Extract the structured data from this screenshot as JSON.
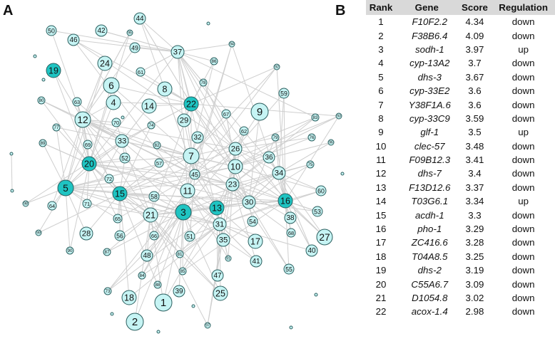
{
  "panel_a_label": "A",
  "panel_b_label": "B",
  "colors": {
    "up": "#1fc4c2",
    "down": "#c6f4f4",
    "edge": "#cfcfcf",
    "stroke": "#2a5e5e",
    "header_bg": "#d9d9d9"
  },
  "network": {
    "nodes": [
      {
        "id": "1",
        "label": "1",
        "reg": "down"
      },
      {
        "id": "2",
        "label": "2",
        "reg": "down"
      },
      {
        "id": "3",
        "label": "3",
        "reg": "up"
      },
      {
        "id": "4",
        "label": "4",
        "reg": "down"
      },
      {
        "id": "5",
        "label": "5",
        "reg": "up"
      },
      {
        "id": "6",
        "label": "6",
        "reg": "down"
      },
      {
        "id": "7",
        "label": "7",
        "reg": "down"
      },
      {
        "id": "8",
        "label": "8",
        "reg": "down"
      },
      {
        "id": "9",
        "label": "9",
        "reg": "down"
      },
      {
        "id": "10",
        "label": "10",
        "reg": "down"
      },
      {
        "id": "11",
        "label": "11",
        "reg": "down"
      },
      {
        "id": "12",
        "label": "12",
        "reg": "down"
      },
      {
        "id": "13",
        "label": "13",
        "reg": "up"
      },
      {
        "id": "14",
        "label": "14",
        "reg": "down"
      },
      {
        "id": "15",
        "label": "15",
        "reg": "up"
      },
      {
        "id": "16",
        "label": "16",
        "reg": "up"
      },
      {
        "id": "17",
        "label": "17",
        "reg": "down"
      },
      {
        "id": "18",
        "label": "18",
        "reg": "down"
      },
      {
        "id": "19",
        "label": "19",
        "reg": "up"
      },
      {
        "id": "20",
        "label": "20",
        "reg": "up"
      },
      {
        "id": "21",
        "label": "21",
        "reg": "down"
      },
      {
        "id": "22",
        "label": "22",
        "reg": "up"
      },
      {
        "id": "23",
        "label": "23",
        "reg": "down"
      },
      {
        "id": "24",
        "label": "24",
        "reg": "down"
      },
      {
        "id": "25",
        "label": "25",
        "reg": "down"
      },
      {
        "id": "26",
        "label": "26",
        "reg": "down"
      },
      {
        "id": "27",
        "label": "27",
        "reg": "down"
      },
      {
        "id": "28",
        "label": "28",
        "reg": "down"
      },
      {
        "id": "29",
        "label": "29",
        "reg": "down"
      },
      {
        "id": "30",
        "label": "30",
        "reg": "down"
      },
      {
        "id": "31",
        "label": "31",
        "reg": "down"
      },
      {
        "id": "32",
        "label": "32",
        "reg": "down"
      },
      {
        "id": "33",
        "label": "33",
        "reg": "down"
      },
      {
        "id": "34",
        "label": "34",
        "reg": "down"
      },
      {
        "id": "35",
        "label": "35",
        "reg": "down"
      },
      {
        "id": "36",
        "label": "36",
        "reg": "down"
      },
      {
        "id": "37",
        "label": "37",
        "reg": "down"
      },
      {
        "id": "38",
        "label": "38",
        "reg": "down"
      },
      {
        "id": "39",
        "label": "39",
        "reg": "down"
      },
      {
        "id": "40",
        "label": "40",
        "reg": "down"
      },
      {
        "id": "41",
        "label": "41",
        "reg": "down"
      },
      {
        "id": "42",
        "label": "42",
        "reg": "down"
      },
      {
        "id": "44",
        "label": "44",
        "reg": "down"
      },
      {
        "id": "45",
        "label": "45",
        "reg": "down"
      },
      {
        "id": "46",
        "label": "46",
        "reg": "down"
      },
      {
        "id": "47",
        "label": "47",
        "reg": "down"
      },
      {
        "id": "48",
        "label": "48",
        "reg": "down"
      },
      {
        "id": "49",
        "label": "49",
        "reg": "down"
      },
      {
        "id": "50",
        "label": "50",
        "reg": "down"
      },
      {
        "id": "51",
        "label": "51",
        "reg": "down"
      },
      {
        "id": "52",
        "label": "52",
        "reg": "down"
      },
      {
        "id": "53",
        "label": "53",
        "reg": "down"
      },
      {
        "id": "54",
        "label": "54",
        "reg": "down"
      },
      {
        "id": "55",
        "label": "55",
        "reg": "down"
      },
      {
        "id": "56",
        "label": "56",
        "reg": "down"
      },
      {
        "id": "57",
        "label": "57",
        "reg": "down"
      },
      {
        "id": "58",
        "label": "58",
        "reg": "down"
      },
      {
        "id": "59",
        "label": "59",
        "reg": "down"
      },
      {
        "id": "60",
        "label": "60",
        "reg": "down"
      },
      {
        "id": "61",
        "label": "61",
        "reg": "down"
      },
      {
        "id": "62",
        "label": "62",
        "reg": "down"
      },
      {
        "id": "63",
        "label": "63",
        "reg": "down"
      },
      {
        "id": "64",
        "label": "64",
        "reg": "down"
      },
      {
        "id": "65",
        "label": "65",
        "reg": "down"
      },
      {
        "id": "66",
        "label": "66",
        "reg": "down"
      },
      {
        "id": "67",
        "label": "67",
        "reg": "down"
      },
      {
        "id": "68",
        "label": "68",
        "reg": "down"
      },
      {
        "id": "69",
        "label": "69",
        "reg": "down"
      },
      {
        "id": "70",
        "label": "70",
        "reg": "down"
      },
      {
        "id": "71",
        "label": "71",
        "reg": "down"
      },
      {
        "id": "72",
        "label": "72",
        "reg": "down"
      },
      {
        "id": "73",
        "label": "73",
        "reg": "down"
      },
      {
        "id": "74",
        "label": "74",
        "reg": "down"
      },
      {
        "id": "75",
        "label": "75",
        "reg": "down"
      },
      {
        "id": "76",
        "label": "76",
        "reg": "down"
      },
      {
        "id": "77",
        "label": "77",
        "reg": "down"
      },
      {
        "id": "78",
        "label": "78",
        "reg": "down"
      },
      {
        "id": "79",
        "label": "79",
        "reg": "down"
      },
      {
        "id": "80",
        "label": "80",
        "reg": "down"
      },
      {
        "id": "81",
        "label": "81",
        "reg": "down"
      },
      {
        "id": "82",
        "label": "82",
        "reg": "down"
      },
      {
        "id": "83",
        "label": "83",
        "reg": "down"
      },
      {
        "id": "84",
        "label": "84",
        "reg": "down"
      },
      {
        "id": "85",
        "label": "85",
        "reg": "down"
      },
      {
        "id": "86",
        "label": "86",
        "reg": "down"
      },
      {
        "id": "87",
        "label": "87",
        "reg": "down"
      },
      {
        "id": "88",
        "label": "88",
        "reg": "down"
      },
      {
        "id": "89",
        "label": "89",
        "reg": "down"
      },
      {
        "id": "90",
        "label": "90",
        "reg": "down"
      },
      {
        "id": "91",
        "label": "91",
        "reg": "down"
      },
      {
        "id": "92",
        "label": "92",
        "reg": "down"
      },
      {
        "id": "93",
        "label": "93",
        "reg": "down"
      },
      {
        "id": "94",
        "label": "94",
        "reg": "down"
      },
      {
        "id": "95",
        "label": "95",
        "reg": "down"
      },
      {
        "id": "96",
        "label": "96",
        "reg": "down"
      },
      {
        "id": "97",
        "label": "97",
        "reg": "down"
      },
      {
        "id": "98",
        "label": "98",
        "reg": "down"
      },
      {
        "id": "99",
        "label": "99",
        "reg": "down"
      }
    ]
  },
  "table": {
    "headers": {
      "rank": "Rank",
      "gene": "Gene",
      "score": "Score",
      "regulation": "Regulation"
    },
    "rows": [
      {
        "rank": "1",
        "gene": "F10F2.2",
        "score": "4.34",
        "regulation": "down"
      },
      {
        "rank": "2",
        "gene": "F38B6.4",
        "score": "4.09",
        "regulation": "down"
      },
      {
        "rank": "3",
        "gene": "sodh-1",
        "score": "3.97",
        "regulation": "up"
      },
      {
        "rank": "4",
        "gene": "cyp-13A2",
        "score": "3.7",
        "regulation": "down"
      },
      {
        "rank": "5",
        "gene": "dhs-3",
        "score": "3.67",
        "regulation": "down"
      },
      {
        "rank": "6",
        "gene": "cyp-33E2",
        "score": "3.6",
        "regulation": "down"
      },
      {
        "rank": "7",
        "gene": "Y38F1A.6",
        "score": "3.6",
        "regulation": "down"
      },
      {
        "rank": "8",
        "gene": "cyp-33C9",
        "score": "3.59",
        "regulation": "down"
      },
      {
        "rank": "9",
        "gene": "glf-1",
        "score": "3.5",
        "regulation": "up"
      },
      {
        "rank": "10",
        "gene": "clec-57",
        "score": "3.48",
        "regulation": "down"
      },
      {
        "rank": "11",
        "gene": "F09B12.3",
        "score": "3.41",
        "regulation": "down"
      },
      {
        "rank": "12",
        "gene": "dhs-7",
        "score": "3.4",
        "regulation": "down"
      },
      {
        "rank": "13",
        "gene": "F13D12.6",
        "score": "3.37",
        "regulation": "down"
      },
      {
        "rank": "14",
        "gene": "T03G6.1",
        "score": "3.34",
        "regulation": "up"
      },
      {
        "rank": "15",
        "gene": "acdh-1",
        "score": "3.3",
        "regulation": "down"
      },
      {
        "rank": "16",
        "gene": "pho-1",
        "score": "3.29",
        "regulation": "down"
      },
      {
        "rank": "17",
        "gene": "ZC416.6",
        "score": "3.28",
        "regulation": "down"
      },
      {
        "rank": "18",
        "gene": "T04A8.5",
        "score": "3.25",
        "regulation": "down"
      },
      {
        "rank": "19",
        "gene": "dhs-2",
        "score": "3.19",
        "regulation": "down"
      },
      {
        "rank": "20",
        "gene": "C55A6.7",
        "score": "3.09",
        "regulation": "down"
      },
      {
        "rank": "21",
        "gene": "D1054.8",
        "score": "3.02",
        "regulation": "down"
      },
      {
        "rank": "22",
        "gene": "acox-1.4",
        "score": "2.98",
        "regulation": "down"
      }
    ]
  }
}
